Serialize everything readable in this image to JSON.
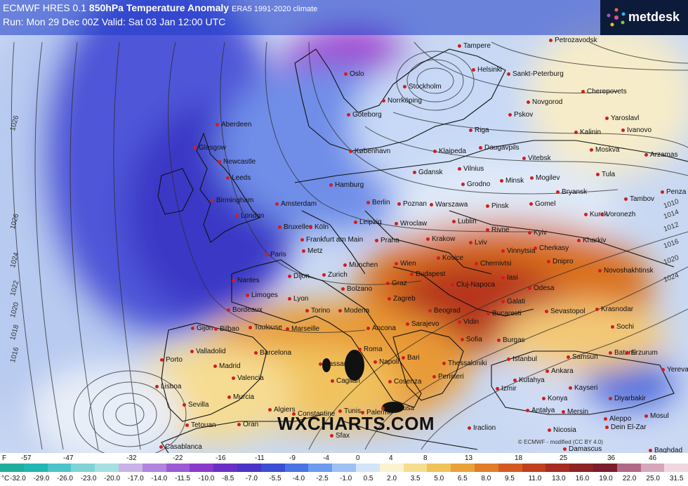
{
  "header": {
    "model": "ECMWF HRES 0.1",
    "product": "850hPa Temperature Anomaly",
    "climate": "ERA5 1991-2020 climate",
    "run_line": "Run: Mon 29 Dec 00Z Valid: Sat 03 Jan 12:00 UTC"
  },
  "brand": {
    "name": "metdesk"
  },
  "watermark": "WXCHARTS.COM",
  "copyright": "© ECMWF - modified (CC BY 4.0)",
  "isobars": [
    "1026",
    "1026",
    "1024",
    "1022",
    "1020",
    "1018",
    "1016",
    "1014",
    "1012",
    "1010",
    "1016",
    "1020",
    "1024"
  ],
  "cities": [
    {
      "name": "Tampere"
    },
    {
      "name": "Petrozavodsk"
    },
    {
      "name": "Helsinki"
    },
    {
      "name": "Sankt-Peterburg"
    },
    {
      "name": "Oslo"
    },
    {
      "name": "Stockholm"
    },
    {
      "name": "Norrköping"
    },
    {
      "name": "Göteborg"
    },
    {
      "name": "Novgorod"
    },
    {
      "name": "Cherepovets"
    },
    {
      "name": "Pskov"
    },
    {
      "name": "Yaroslavl"
    },
    {
      "name": "Ivanovo"
    },
    {
      "name": "Aberdeen"
    },
    {
      "name": "Riga"
    },
    {
      "name": "Kalinin"
    },
    {
      "name": "Moskva"
    },
    {
      "name": "Arzamas"
    },
    {
      "name": "Glasgow"
    },
    {
      "name": "Newcastle"
    },
    {
      "name": "København"
    },
    {
      "name": "Klaipeda"
    },
    {
      "name": "Daugavpils"
    },
    {
      "name": "Vitebsk"
    },
    {
      "name": "Leeds"
    },
    {
      "name": "Gdansk"
    },
    {
      "name": "Vilnius"
    },
    {
      "name": "Minsk"
    },
    {
      "name": "Mogilev"
    },
    {
      "name": "Tula"
    },
    {
      "name": "Hamburg"
    },
    {
      "name": "Grodno"
    },
    {
      "name": "Bryansk"
    },
    {
      "name": "Tambov"
    },
    {
      "name": "Penza"
    },
    {
      "name": "Birmingham"
    },
    {
      "name": "Amsterdam"
    },
    {
      "name": "Berlin"
    },
    {
      "name": "Poznan"
    },
    {
      "name": "Warszawa"
    },
    {
      "name": "Pinsk"
    },
    {
      "name": "Gomel"
    },
    {
      "name": "London"
    },
    {
      "name": "Kursk"
    },
    {
      "name": "Voronezh"
    },
    {
      "name": "Bruxelles"
    },
    {
      "name": "Köln"
    },
    {
      "name": "Leipzig"
    },
    {
      "name": "Wroclaw"
    },
    {
      "name": "Lublin"
    },
    {
      "name": "Rivne"
    },
    {
      "name": "Kyiv"
    },
    {
      "name": "Frankfurt am Main"
    },
    {
      "name": "Praha"
    },
    {
      "name": "Krakow"
    },
    {
      "name": "Lviv"
    },
    {
      "name": "Kharkiv"
    },
    {
      "name": "Paris"
    },
    {
      "name": "Metz"
    },
    {
      "name": "Vinnytsia"
    },
    {
      "name": "Cherkasy"
    },
    {
      "name": "Munchen"
    },
    {
      "name": "Wien"
    },
    {
      "name": "Kosice"
    },
    {
      "name": "Chernivtsi"
    },
    {
      "name": "Dnipro"
    },
    {
      "name": "Novoshakhtinsk"
    },
    {
      "name": "Nantes"
    },
    {
      "name": "Dijon"
    },
    {
      "name": "Zurich"
    },
    {
      "name": "Budapest"
    },
    {
      "name": "Limoges"
    },
    {
      "name": "Bolzano"
    },
    {
      "name": "Graz"
    },
    {
      "name": "Cluj-Napoca"
    },
    {
      "name": "Iasi"
    },
    {
      "name": "Odesa"
    },
    {
      "name": "Lyon"
    },
    {
      "name": "Zagreb"
    },
    {
      "name": "Galati"
    },
    {
      "name": "Sevastopol"
    },
    {
      "name": "Krasnodar"
    },
    {
      "name": "Bordeaux"
    },
    {
      "name": "Torino"
    },
    {
      "name": "Modena"
    },
    {
      "name": "Beograd"
    },
    {
      "name": "Bucaresti"
    },
    {
      "name": "Gijon"
    },
    {
      "name": "Bilbao"
    },
    {
      "name": "Toulouse"
    },
    {
      "name": "Marseille"
    },
    {
      "name": "Ancona"
    },
    {
      "name": "Sarajevo"
    },
    {
      "name": "Vidin"
    },
    {
      "name": "Sochi"
    },
    {
      "name": "Sofia"
    },
    {
      "name": "Burgas"
    },
    {
      "name": "Valladolid"
    },
    {
      "name": "Barcelona"
    },
    {
      "name": "Roma"
    },
    {
      "name": "Bari"
    },
    {
      "name": "Istanbul"
    },
    {
      "name": "Samsun"
    },
    {
      "name": "Batumi"
    },
    {
      "name": "Porto"
    },
    {
      "name": "Madrid"
    },
    {
      "name": "Sassari"
    },
    {
      "name": "Napoli"
    },
    {
      "name": "Thessaloniki"
    },
    {
      "name": "Ankara"
    },
    {
      "name": "Erzurum"
    },
    {
      "name": "Yerevan"
    },
    {
      "name": "Valencia"
    },
    {
      "name": "Cagliari"
    },
    {
      "name": "Cosenza"
    },
    {
      "name": "Peristeri"
    },
    {
      "name": "Kutahya"
    },
    {
      "name": "Kayseri"
    },
    {
      "name": "Lisboa"
    },
    {
      "name": "Murcia"
    },
    {
      "name": "Izmir"
    },
    {
      "name": "Konya"
    },
    {
      "name": "Diyarbakir"
    },
    {
      "name": "Sevilla"
    },
    {
      "name": "Algiers"
    },
    {
      "name": "Palermo"
    },
    {
      "name": "Siracusa"
    },
    {
      "name": "Antalya"
    },
    {
      "name": "Mersin"
    },
    {
      "name": "Aleppo"
    },
    {
      "name": "Mosul"
    },
    {
      "name": "Tetouan"
    },
    {
      "name": "Oran"
    },
    {
      "name": "Constantine"
    },
    {
      "name": "Tunis"
    },
    {
      "name": "Iraclion"
    },
    {
      "name": "Nicosia"
    },
    {
      "name": "Dein El-Zar"
    },
    {
      "name": "Casablanca"
    },
    {
      "name": "Sfax"
    },
    {
      "name": "Damascus"
    },
    {
      "name": "Baghdad"
    }
  ],
  "legend": {
    "f_label": "F",
    "f_ticks": [
      "-57",
      "-47",
      "-32",
      "-22",
      "-16",
      "-11",
      "-9",
      "-4",
      "0",
      "4",
      "8",
      "13",
      "18",
      "25",
      "36",
      "46"
    ],
    "c_label": "°C",
    "c_ticks": [
      "-32.0",
      "-29.0",
      "-26.0",
      "-23.0",
      "-20.0",
      "-17.0",
      "-14.0",
      "-11.5",
      "-10.0",
      "-8.5",
      "-7.0",
      "-5.5",
      "-4.0",
      "-2.5",
      "-1.0",
      "0.5",
      "2.0",
      "3.5",
      "5.0",
      "6.5",
      "8.0",
      "9.5",
      "11.0",
      "13.0",
      "16.0",
      "19.0",
      "22.0",
      "25.0",
      "31.5"
    ],
    "colors": [
      "#1fae9e",
      "#22b6b5",
      "#4cc3c9",
      "#7fd3d6",
      "#a7e0e0",
      "#c9b3e6",
      "#b184de",
      "#9a5bd3",
      "#8a3ac9",
      "#6a30c4",
      "#4a34c4",
      "#3a4fd4",
      "#4a74e3",
      "#6d9bed",
      "#9ec1f3",
      "#d4e4f7",
      "#fbf3cf",
      "#f6dd8f",
      "#f0c35a",
      "#e9a23a",
      "#e07d2a",
      "#d35b22",
      "#c0401e",
      "#a52c20",
      "#8c2324",
      "#7a1d2c",
      "#b06a85",
      "#d6a7bb",
      "#f0d7df"
    ]
  }
}
